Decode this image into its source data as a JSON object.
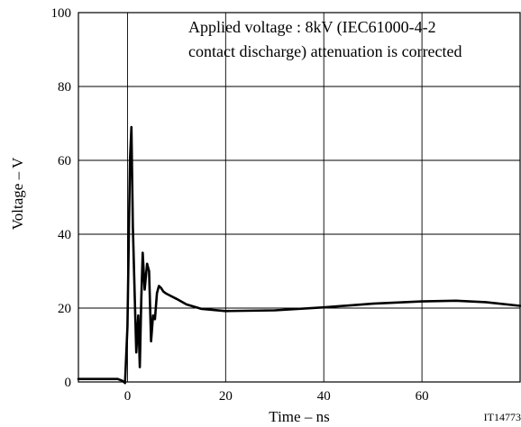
{
  "chart_data": {
    "type": "line",
    "xlabel": "Time – ns",
    "ylabel": "Voltage – V",
    "xlim": [
      -10,
      80
    ],
    "ylim": [
      0,
      100
    ],
    "x_ticks": [
      0,
      20,
      40,
      60
    ],
    "y_ticks": [
      0,
      20,
      40,
      60,
      80,
      100
    ],
    "grid": true,
    "annotation_lines": [
      "Applied voltage : 8kV (IEC61000-4-2",
      "contact discharge) attenuation is corrected"
    ],
    "figure_id": "IT14773",
    "series": [
      {
        "x": [
          -10,
          -2,
          -1,
          -0.5,
          0,
          0.5,
          0.8,
          1.1,
          1.5,
          1.8,
          2.2,
          2.5,
          2.8,
          3.1,
          3.5,
          4.0,
          4.4,
          4.8,
          5.2,
          5.6,
          6.0,
          6.4,
          6.8,
          7.3,
          7.8,
          8.5,
          10,
          12,
          15,
          20,
          30,
          40,
          50,
          60,
          67,
          73,
          80
        ],
        "y": [
          0.8,
          0.8,
          0.3,
          -0.3,
          15,
          60,
          69,
          42,
          22,
          8,
          18,
          4,
          22,
          35,
          25,
          32,
          30,
          11,
          18,
          17,
          24,
          26,
          25.5,
          24.5,
          24,
          23.5,
          22.5,
          21,
          19.8,
          19.2,
          19.4,
          20.2,
          21.2,
          21.8,
          22,
          21.6,
          20.6
        ]
      }
    ]
  }
}
